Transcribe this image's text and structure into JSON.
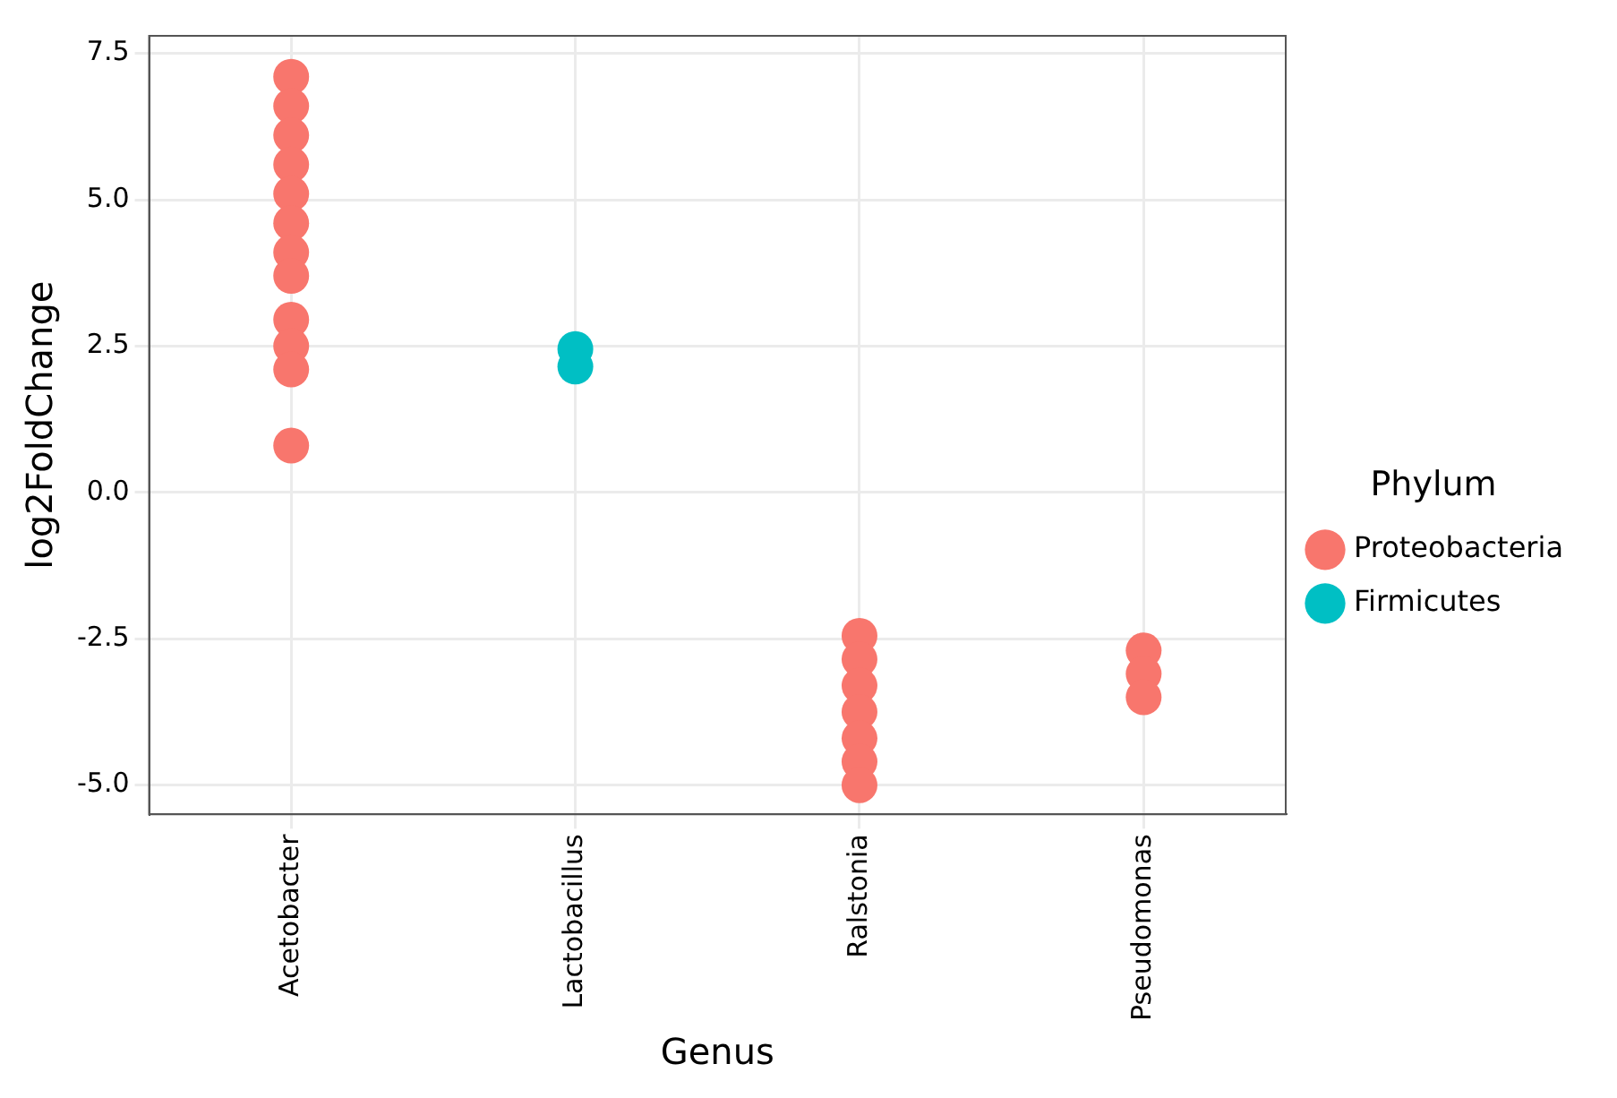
{
  "chart_data": {
    "type": "scatter",
    "xlabel": "Genus",
    "ylabel": "log2FoldChange",
    "legend_title": "Phylum",
    "categories": [
      "Acetobacter",
      "Lactobacillus",
      "Ralstonia",
      "Pseudomonas"
    ],
    "series": [
      {
        "name": "Proteobacteria",
        "color": "#f8766d",
        "x": [
          "Acetobacter",
          "Acetobacter",
          "Acetobacter",
          "Acetobacter",
          "Acetobacter",
          "Acetobacter",
          "Acetobacter",
          "Acetobacter",
          "Acetobacter",
          "Acetobacter",
          "Acetobacter",
          "Acetobacter",
          "Ralstonia",
          "Ralstonia",
          "Ralstonia",
          "Ralstonia",
          "Ralstonia",
          "Ralstonia",
          "Ralstonia",
          "Pseudomonas",
          "Pseudomonas",
          "Pseudomonas"
        ],
        "values": [
          7.1,
          6.6,
          6.1,
          5.6,
          5.1,
          4.6,
          4.1,
          3.7,
          2.95,
          2.5,
          2.1,
          0.8,
          -2.45,
          -2.85,
          -3.3,
          -3.75,
          -4.2,
          -4.6,
          -5.0,
          -2.7,
          -3.1,
          -3.5
        ]
      },
      {
        "name": "Firmicutes",
        "color": "#00bfc4",
        "x": [
          "Lactobacillus",
          "Lactobacillus"
        ],
        "values": [
          2.45,
          2.15
        ]
      }
    ],
    "ylim": [
      -5.5,
      7.8
    ],
    "yticks": [
      {
        "value": -5,
        "label": "-5.0"
      },
      {
        "value": -2.5,
        "label": "-2.5"
      },
      {
        "value": 0,
        "label": "0.0"
      },
      {
        "value": 2.5,
        "label": "2.5"
      },
      {
        "value": 5,
        "label": "5.0"
      },
      {
        "value": 7.5,
        "label": "7.5"
      }
    ],
    "grid": true,
    "legend": "right",
    "marker": "circle"
  }
}
